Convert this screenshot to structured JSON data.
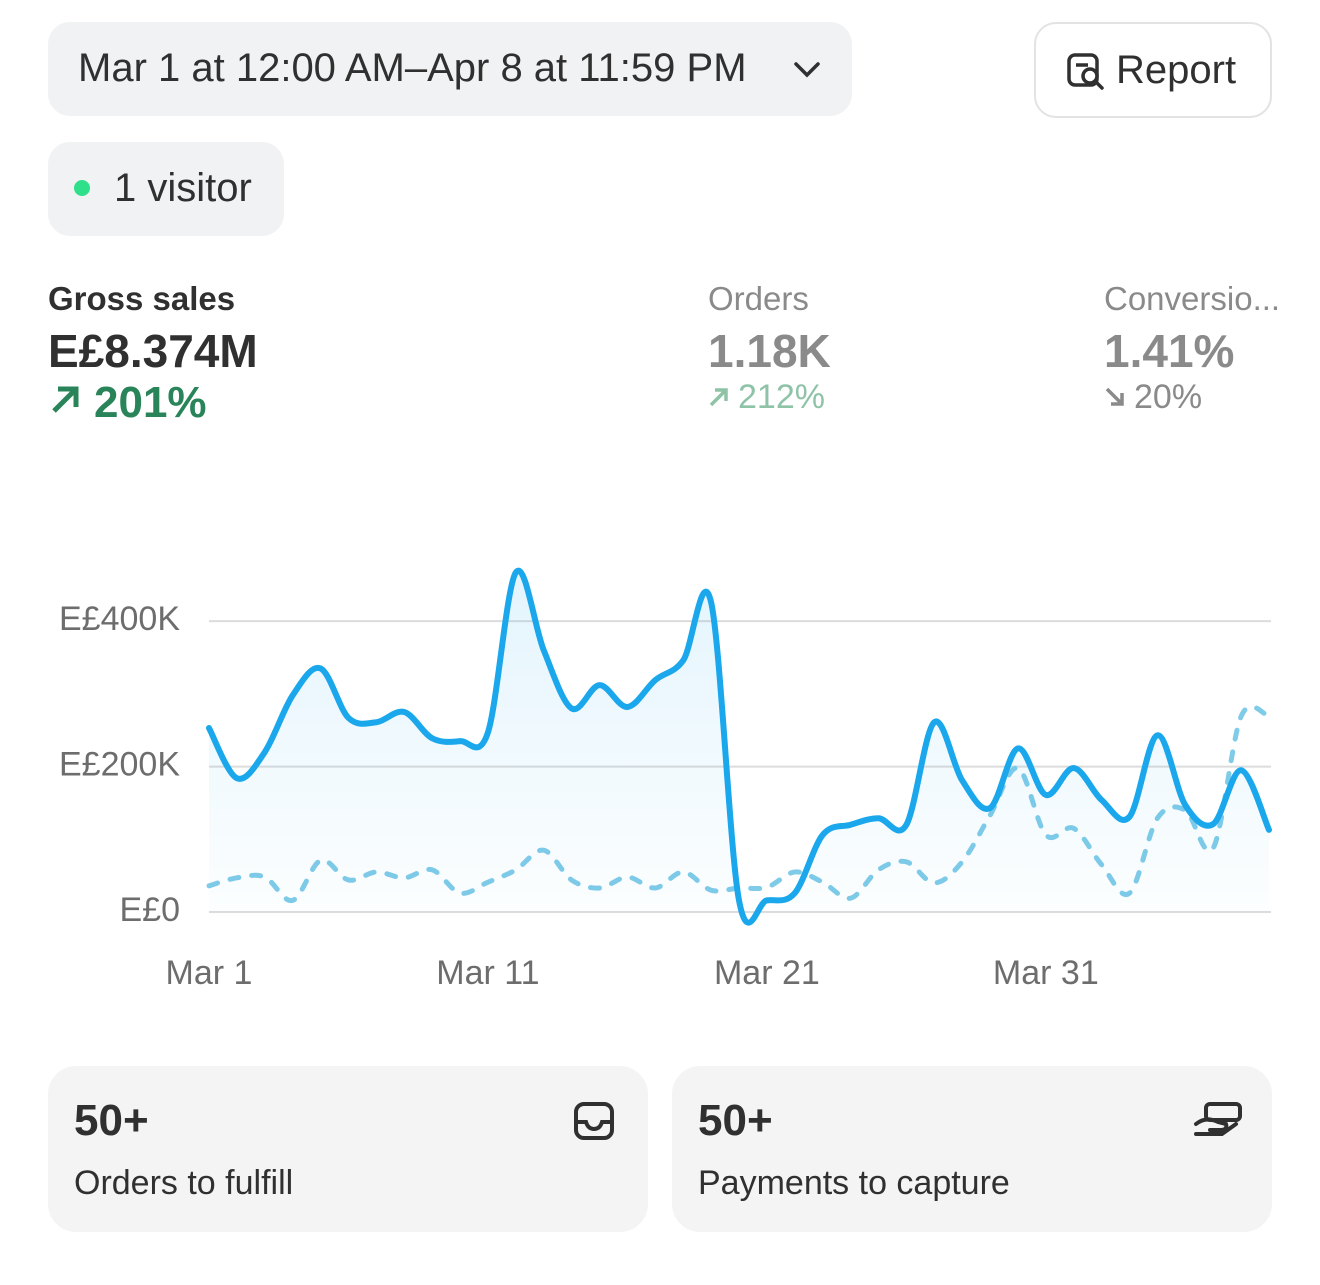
{
  "header": {
    "date_range": "Mar 1 at 12:00 AM–Apr 8 at 11:59 PM",
    "report_button": "Report",
    "live_visitors": "1 visitor"
  },
  "metrics": [
    {
      "label": "Gross sales",
      "value": "E£8.374M",
      "change": "201%"
    },
    {
      "label": "Orders",
      "value": "1.18K",
      "change": "212%"
    },
    {
      "label": "Conversio...",
      "value": "1.41%",
      "change": "20%"
    }
  ],
  "chart_data": {
    "type": "line",
    "categories": [
      "Mar 1",
      null,
      null,
      null,
      null,
      null,
      null,
      null,
      null,
      null,
      "Mar 11",
      null,
      null,
      null,
      null,
      null,
      null,
      null,
      null,
      null,
      "Mar 21",
      null,
      null,
      null,
      null,
      null,
      null,
      null,
      null,
      null,
      "Mar 31",
      null,
      null,
      null,
      null,
      null,
      null,
      null,
      null
    ],
    "series": [
      {
        "color": "#1aa7ec",
        "values": [
          253000,
          184000,
          220000,
          298000,
          335000,
          267000,
          261000,
          275000,
          239000,
          235000,
          247000,
          467000,
          360000,
          280000,
          312000,
          282000,
          319000,
          346000,
          426000,
          16000,
          16000,
          26000,
          106000,
          120000,
          129000,
          120000,
          261000,
          181000,
          143000,
          225000,
          161000,
          198000,
          154000,
          131000,
          243000,
          147000,
          121000,
          195000,
          113000
        ]
      },
      {
        "color": "#7fcbe8",
        "dashed": true,
        "values": [
          36000,
          47000,
          48000,
          16000,
          71000,
          44000,
          55000,
          47000,
          58000,
          26000,
          41000,
          58000,
          85000,
          44000,
          33000,
          48000,
          33000,
          55000,
          30000,
          33000,
          34000,
          55000,
          41000,
          19000,
          58000,
          69000,
          40000,
          69000,
          133000,
          198000,
          106000,
          115000,
          65000,
          26000,
          129000,
          140000,
          88000,
          269000,
          269000
        ]
      }
    ],
    "ylim": [
      0,
      480000
    ],
    "yticks": [
      {
        "value": 0,
        "label": "E£0"
      },
      {
        "value": 200000,
        "label": "E£200K"
      },
      {
        "value": 400000,
        "label": "E£400K"
      }
    ],
    "grid": true
  },
  "cards": [
    {
      "count": "50+",
      "label": "Orders to fulfill"
    },
    {
      "count": "50+",
      "label": "Payments to capture"
    }
  ]
}
